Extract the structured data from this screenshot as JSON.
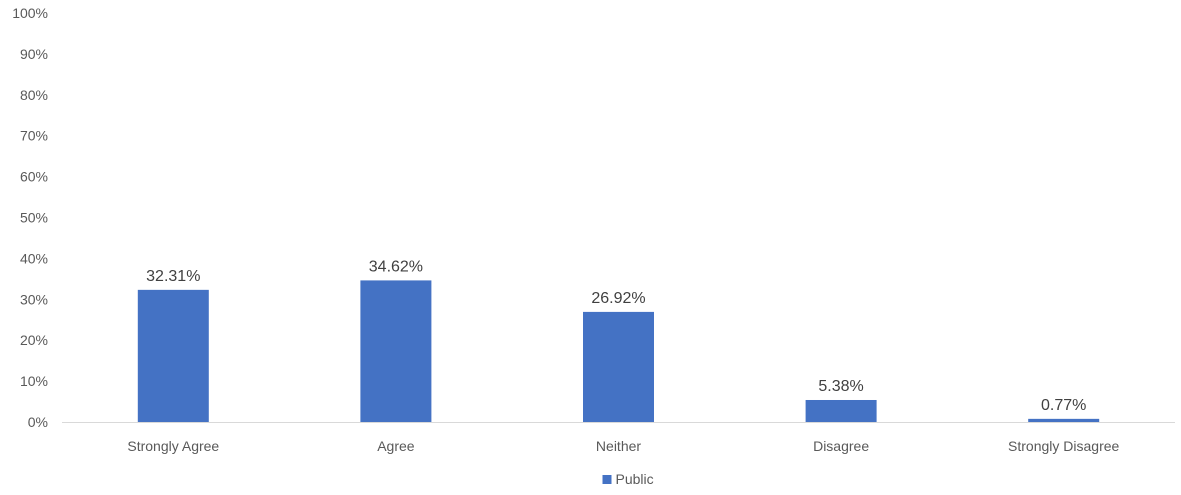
{
  "chart_data": {
    "type": "bar",
    "title": "",
    "xlabel": "",
    "ylabel": "",
    "categories": [
      "Strongly Agree",
      "Agree",
      "Neither",
      "Disagree",
      "Strongly Disagree"
    ],
    "series": [
      {
        "name": "Public",
        "values": [
          32.31,
          34.62,
          26.92,
          5.38,
          0.77
        ],
        "labels": [
          "32.31%",
          "34.62%",
          "26.92%",
          "5.38%",
          "0.77%"
        ],
        "color": "#4472C4"
      }
    ],
    "ylim": [
      0,
      100
    ],
    "yticks": [
      0,
      10,
      20,
      30,
      40,
      50,
      60,
      70,
      80,
      90,
      100
    ],
    "ytick_labels": [
      "0%",
      "10%",
      "20%",
      "30%",
      "40%",
      "50%",
      "60%",
      "70%",
      "80%",
      "90%",
      "100%"
    ],
    "grid": false,
    "legend_position": "bottom"
  }
}
